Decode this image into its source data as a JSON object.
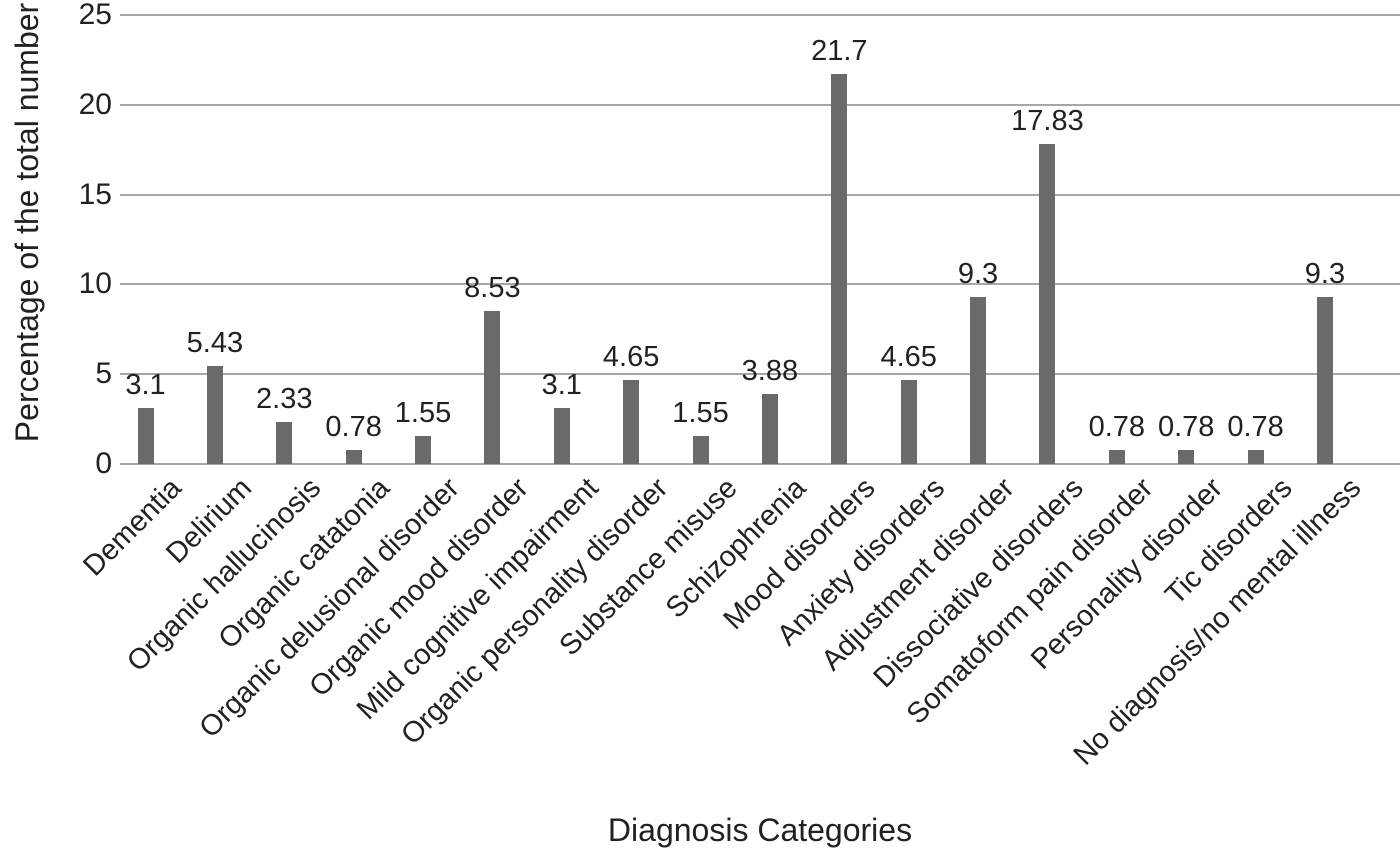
{
  "chart_data": {
    "type": "bar",
    "title": "",
    "xlabel": "Diagnosis Categories",
    "ylabel": "Percentage of the total number",
    "ylim": [
      0,
      25
    ],
    "yticks": [
      0,
      5,
      10,
      15,
      20,
      25
    ],
    "grid": "horizontal",
    "legend": "none",
    "bar_color": "#6a6a6a",
    "gridline_color": "#a6a6a6",
    "text_color": "#212121",
    "categories": [
      "Dementia",
      "Delirium",
      "Organic hallucinosis",
      "Organic catatonia",
      "Organic delusional disorder",
      "Organic mood disorder",
      "Mild cognitive impairment",
      "Organic personality disorder",
      "Substance misuse",
      "Schizophrenia",
      "Mood disorders",
      "Anxiety disorders",
      "Adjustment disorder",
      "Dissociative disorders",
      "Somatoform pain disorder",
      "Personality disorder",
      "Tic disorders",
      "No diagnosis/no mental illness"
    ],
    "values": [
      3.1,
      5.43,
      2.33,
      0.78,
      1.55,
      8.53,
      3.1,
      4.65,
      1.55,
      3.88,
      21.7,
      4.65,
      9.3,
      17.83,
      0.78,
      0.78,
      0.78,
      9.3
    ],
    "value_labels": [
      "3.1",
      "5.43",
      "2.33",
      "0.78",
      "1.55",
      "8.53",
      "3.1",
      "4.65",
      "1.55",
      "3.88",
      "21.7",
      "4.65",
      "9.3",
      "17.83",
      "0.78",
      "0.78",
      "0.78",
      "9.3"
    ]
  }
}
